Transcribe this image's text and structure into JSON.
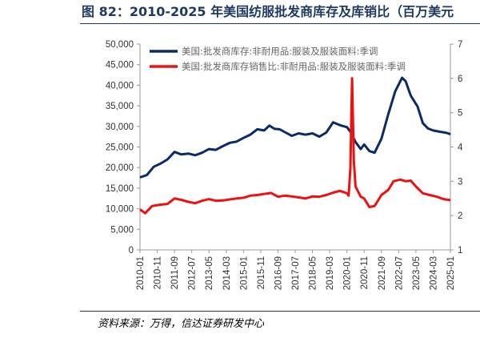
{
  "page": {
    "title": "图 82：2010-2025 年美国纺服批发商库存及库销比（百万美元",
    "source": "资料来源：万得，信达证券研发中心"
  },
  "chart_data": {
    "type": "line",
    "title": "图 82：2010-2025 年美国纺服批发商库存及库销比（百万美元",
    "xlabel": "",
    "ylabel": "",
    "x_ticks": [
      "2010-01",
      "2010-11",
      "2011-09",
      "2012-07",
      "2013-05",
      "2014-03",
      "2015-01",
      "2015-11",
      "2016-09",
      "2017-07",
      "2018-05",
      "2019-03",
      "2020-01",
      "2020-11",
      "2021-09",
      "2022-07",
      "2023-05",
      "2024-03",
      "2025-01"
    ],
    "y_left_ticks": [
      "0",
      "5,000",
      "10,000",
      "15,000",
      "20,000",
      "25,000",
      "30,000",
      "35,000",
      "40,000",
      "45,000",
      "50,000"
    ],
    "y_right_ticks": [
      "1",
      "2",
      "3",
      "4",
      "5",
      "6",
      "7"
    ],
    "ylim_left": [
      0,
      50000
    ],
    "ylim_right": [
      1,
      7
    ],
    "grid": false,
    "legend_position": "top-left",
    "series": [
      {
        "name": "美国:批发商库存:非耐用品:服装及服装面料:季调",
        "axis": "left",
        "color": "#0b2a66",
        "points": [
          [
            "2010-01",
            17600
          ],
          [
            "2010-05",
            18200
          ],
          [
            "2010-09",
            20200
          ],
          [
            "2011-01",
            21000
          ],
          [
            "2011-05",
            22000
          ],
          [
            "2011-09",
            23800
          ],
          [
            "2012-01",
            23200
          ],
          [
            "2012-05",
            23400
          ],
          [
            "2012-09",
            23000
          ],
          [
            "2013-01",
            23600
          ],
          [
            "2013-05",
            24500
          ],
          [
            "2013-09",
            24300
          ],
          [
            "2014-01",
            25200
          ],
          [
            "2014-05",
            26000
          ],
          [
            "2014-09",
            26300
          ],
          [
            "2015-01",
            27200
          ],
          [
            "2015-05",
            28000
          ],
          [
            "2015-09",
            29300
          ],
          [
            "2016-01",
            29000
          ],
          [
            "2016-04",
            30200
          ],
          [
            "2016-07",
            29400
          ],
          [
            "2016-10",
            29300
          ],
          [
            "2017-01",
            28600
          ],
          [
            "2017-05",
            27700
          ],
          [
            "2017-09",
            28300
          ],
          [
            "2018-01",
            28000
          ],
          [
            "2018-05",
            28300
          ],
          [
            "2018-09",
            27500
          ],
          [
            "2019-01",
            28500
          ],
          [
            "2019-05",
            31000
          ],
          [
            "2019-09",
            30300
          ],
          [
            "2020-01",
            29800
          ],
          [
            "2020-03",
            28700
          ],
          [
            "2020-06",
            26200
          ],
          [
            "2020-09",
            24500
          ],
          [
            "2020-11",
            25600
          ],
          [
            "2021-02",
            24000
          ],
          [
            "2021-05",
            23600
          ],
          [
            "2021-09",
            27000
          ],
          [
            "2022-01",
            33000
          ],
          [
            "2022-05",
            38500
          ],
          [
            "2022-09",
            41800
          ],
          [
            "2022-11",
            41000
          ],
          [
            "2023-02",
            37500
          ],
          [
            "2023-06",
            34800
          ],
          [
            "2023-09",
            30800
          ],
          [
            "2023-12",
            29500
          ],
          [
            "2024-03",
            29000
          ],
          [
            "2024-07",
            28700
          ],
          [
            "2024-11",
            28400
          ],
          [
            "2025-01",
            28100
          ]
        ]
      },
      {
        "name": "美国:批发商库存销售比:非耐用品:服装及服装面料:季调",
        "axis": "right",
        "color": "#ee1111",
        "points": [
          [
            "2010-01",
            2.18
          ],
          [
            "2010-04",
            2.07
          ],
          [
            "2010-08",
            2.28
          ],
          [
            "2011-01",
            2.32
          ],
          [
            "2011-05",
            2.34
          ],
          [
            "2011-09",
            2.5
          ],
          [
            "2012-01",
            2.46
          ],
          [
            "2012-05",
            2.4
          ],
          [
            "2012-09",
            2.36
          ],
          [
            "2013-01",
            2.43
          ],
          [
            "2013-05",
            2.48
          ],
          [
            "2013-09",
            2.43
          ],
          [
            "2014-01",
            2.44
          ],
          [
            "2014-05",
            2.47
          ],
          [
            "2014-09",
            2.5
          ],
          [
            "2015-01",
            2.52
          ],
          [
            "2015-05",
            2.58
          ],
          [
            "2015-09",
            2.6
          ],
          [
            "2016-01",
            2.63
          ],
          [
            "2016-05",
            2.66
          ],
          [
            "2016-09",
            2.55
          ],
          [
            "2017-01",
            2.58
          ],
          [
            "2017-05",
            2.56
          ],
          [
            "2017-09",
            2.53
          ],
          [
            "2018-01",
            2.5
          ],
          [
            "2018-05",
            2.56
          ],
          [
            "2018-09",
            2.55
          ],
          [
            "2019-01",
            2.6
          ],
          [
            "2019-05",
            2.67
          ],
          [
            "2019-09",
            2.72
          ],
          [
            "2020-01",
            2.65
          ],
          [
            "2020-02",
            2.58
          ],
          [
            "2020-03",
            3.4
          ],
          [
            "2020-04",
            6.0
          ],
          [
            "2020-05",
            3.6
          ],
          [
            "2020-06",
            2.85
          ],
          [
            "2020-09",
            2.55
          ],
          [
            "2020-11",
            2.5
          ],
          [
            "2021-02",
            2.25
          ],
          [
            "2021-05",
            2.28
          ],
          [
            "2021-09",
            2.6
          ],
          [
            "2022-01",
            2.75
          ],
          [
            "2022-04",
            3.0
          ],
          [
            "2022-08",
            3.05
          ],
          [
            "2022-11",
            3.0
          ],
          [
            "2023-02",
            3.02
          ],
          [
            "2023-05",
            2.85
          ],
          [
            "2023-09",
            2.65
          ],
          [
            "2024-01",
            2.6
          ],
          [
            "2024-05",
            2.55
          ],
          [
            "2024-09",
            2.48
          ],
          [
            "2025-01",
            2.45
          ]
        ]
      }
    ]
  }
}
